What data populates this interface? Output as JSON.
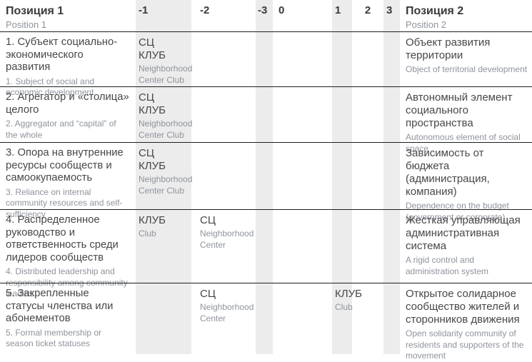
{
  "header": {
    "pos1": {
      "ru": "Позиция 1",
      "en": "Position 1"
    },
    "pos2": {
      "ru": "Позиция 2",
      "en": "Position 2"
    },
    "scale": [
      "-1",
      "-2",
      "-3",
      "0",
      "1",
      "2",
      "3"
    ]
  },
  "colors": {
    "stripe": "#ececec",
    "line": "#1f1f1f",
    "title": "#474747",
    "subtitle": "#8e949c"
  },
  "rows": [
    {
      "title": {
        "ru": "1. Субъект социально-экономического развития",
        "en": "1. Subject of social and economic development"
      },
      "cells": {
        "-1": {
          "ru": "СЦ\nКЛУБ",
          "en": "Neighborhood Center Club"
        }
      },
      "pos2": {
        "ru": "Объект развития территории",
        "en": "Object of territorial development"
      }
    },
    {
      "title": {
        "ru": "2. Агрегатор и «столица» целого",
        "en": "2. Aggregator and “capital” of the whole"
      },
      "cells": {
        "-1": {
          "ru": "СЦ\nКЛУБ",
          "en": "Neighborhood Center Club"
        }
      },
      "pos2": {
        "ru": "Автономный элемент социального пространства",
        "en": "Autonomous element of social space"
      }
    },
    {
      "title": {
        "ru": "3. Опора на внутренние ресурсы сообществ и самоокупаемость",
        "en": "3. Reliance on internal community resources and self-sufficiency"
      },
      "cells": {
        "-1": {
          "ru": "СЦ\nКЛУБ",
          "en": "Neighborhood Center Club"
        }
      },
      "pos2": {
        "ru": "Зависимость от бюджета (администрация, компания)",
        "en": "Dependence on the budget (government or corporate)"
      }
    },
    {
      "title": {
        "ru": "4. Распределенное руководство и ответственность среди лидеров сообществ",
        "en": "4. Distributed leadership and responsibility among community leaders"
      },
      "cells": {
        "-1": {
          "ru": "КЛУБ",
          "en": "Club"
        },
        "-2": {
          "ru": "СЦ",
          "en": "Neighborhood Center"
        }
      },
      "pos2": {
        "ru": "Жесткая управляющая административная система",
        "en": "A rigid control and administration system"
      }
    },
    {
      "title": {
        "ru": "5. Закрепленные статусы членства или абонементов",
        "en": "5. Formal membership or season ticket statuses"
      },
      "cells": {
        "-2": {
          "ru": "СЦ",
          "en": "Neighborhood Center"
        },
        "1": {
          "ru": "КЛУБ",
          "en": "Club"
        }
      },
      "pos2": {
        "ru": "Открытое солидарное сообщество жителей и сторонников движения",
        "en": "Open solidarity community of residents and supporters of the movement"
      }
    }
  ]
}
